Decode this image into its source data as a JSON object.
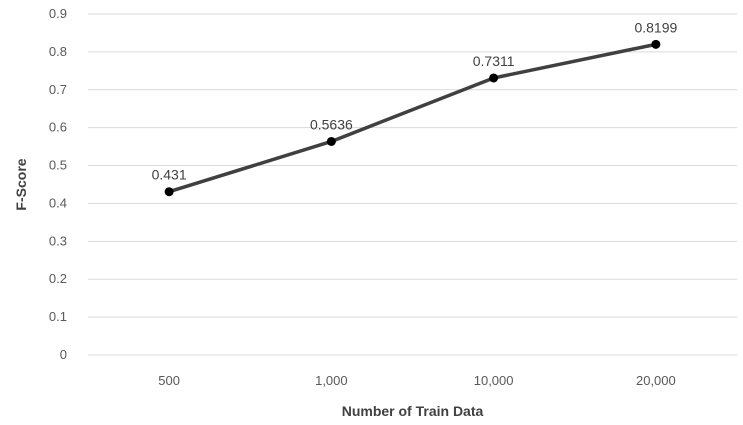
{
  "chart_data": {
    "type": "line",
    "categories": [
      "500",
      "1,000",
      "10,000",
      "20,000"
    ],
    "series": [
      {
        "values": [
          0.431,
          0.5636,
          0.7311,
          0.8199
        ]
      }
    ],
    "data_labels": [
      "0.431",
      "0.5636",
      "0.7311",
      "0.8199"
    ],
    "title": "",
    "xlabel": "Number of Train Data",
    "ylabel": "F-Score",
    "ylim": [
      0,
      0.9
    ],
    "yticks": [
      0,
      0.1,
      0.2,
      0.3,
      0.4,
      0.5,
      0.6,
      0.7,
      0.8,
      0.9
    ],
    "ytick_labels": [
      "0",
      "0.1",
      "0.2",
      "0.3",
      "0.4",
      "0.5",
      "0.6",
      "0.7",
      "0.8",
      "0.9"
    ],
    "grid": true,
    "legend": "none",
    "colors": {
      "line": "#404040",
      "marker": "#000000",
      "grid": "#d9d9d9"
    }
  }
}
